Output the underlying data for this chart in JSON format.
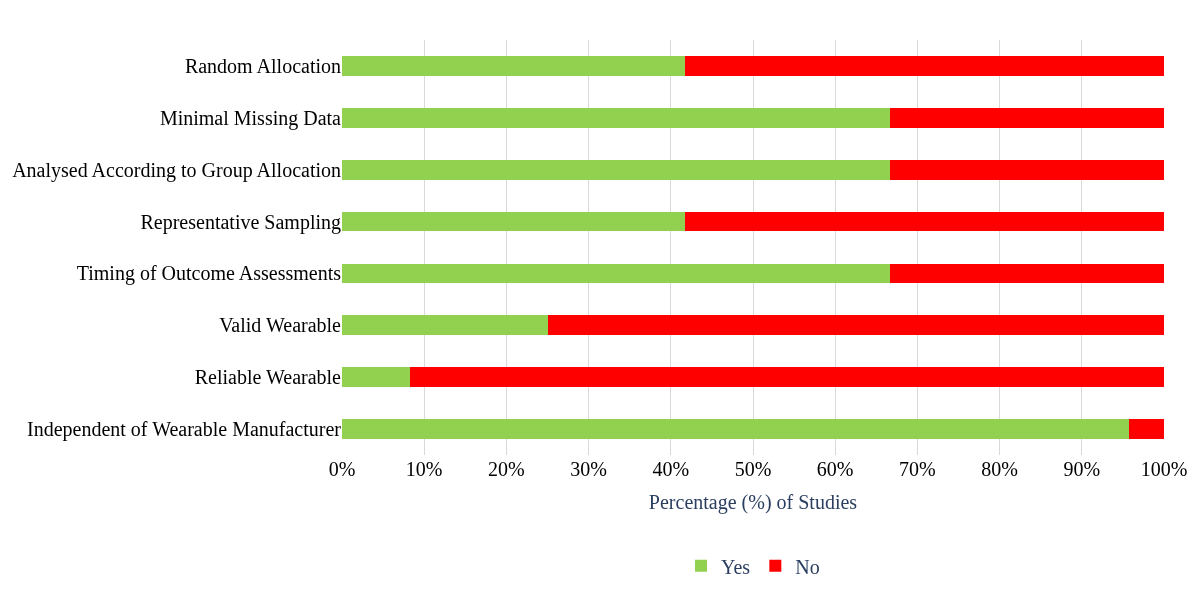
{
  "chart_data": {
    "type": "bar",
    "orientation": "horizontal",
    "stacked": true,
    "xlabel": "Percentage (%) of Studies",
    "categories": [
      "Random Allocation",
      "Minimal Missing Data",
      "Analysed According to Group Allocation",
      "Representative Sampling",
      "Timing of Outcome Assessments",
      "Valid Wearable",
      "Reliable Wearable",
      "Independent of Wearable Manufacturer"
    ],
    "series": [
      {
        "name": "Yes",
        "color": "#92d050",
        "values": [
          41.7,
          66.7,
          66.7,
          41.7,
          66.7,
          25,
          8.3,
          95.8
        ]
      },
      {
        "name": "No",
        "color": "#ff0000",
        "values": [
          58.3,
          33.3,
          33.3,
          58.3,
          33.3,
          75,
          91.7,
          4.2
        ]
      }
    ],
    "xlim": [
      0,
      100
    ],
    "xticks": [
      {
        "value": 0,
        "label": "0%"
      },
      {
        "value": 10,
        "label": "10%"
      },
      {
        "value": 20,
        "label": "20%"
      },
      {
        "value": 30,
        "label": "30%"
      },
      {
        "value": 40,
        "label": "40%"
      },
      {
        "value": 50,
        "label": "50%"
      },
      {
        "value": 60,
        "label": "60%"
      },
      {
        "value": 70,
        "label": "70%"
      },
      {
        "value": 80,
        "label": "80%"
      },
      {
        "value": 90,
        "label": "90%"
      },
      {
        "value": 100,
        "label": "100%"
      }
    ],
    "grid": "x",
    "legend": "bottom"
  }
}
